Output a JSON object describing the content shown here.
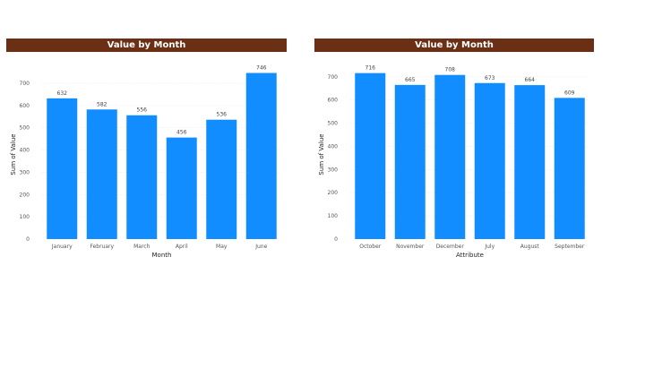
{
  "colors": {
    "title_bar": "#6b2f16",
    "bar": "#118dff"
  },
  "chart_data": [
    {
      "type": "bar",
      "title": "Value by Month",
      "xlabel": "Month",
      "ylabel": "Sum of Value",
      "categories": [
        "January",
        "February",
        "March",
        "April",
        "May",
        "June"
      ],
      "values": [
        632,
        582,
        556,
        456,
        536,
        746
      ],
      "ylim": [
        0,
        760
      ],
      "yticks": [
        0,
        100,
        200,
        300,
        400,
        500,
        600,
        700
      ],
      "grid": true,
      "data_labels": true
    },
    {
      "type": "bar",
      "title": "Value by Month",
      "xlabel": "Attribute",
      "ylabel": "Sum of Value",
      "categories": [
        "October",
        "November",
        "December",
        "July",
        "August",
        "September"
      ],
      "values": [
        716,
        665,
        708,
        673,
        664,
        609
      ],
      "ylim": [
        0,
        730
      ],
      "yticks": [
        0,
        100,
        200,
        300,
        400,
        500,
        600,
        700
      ],
      "grid": true,
      "data_labels": true
    }
  ]
}
